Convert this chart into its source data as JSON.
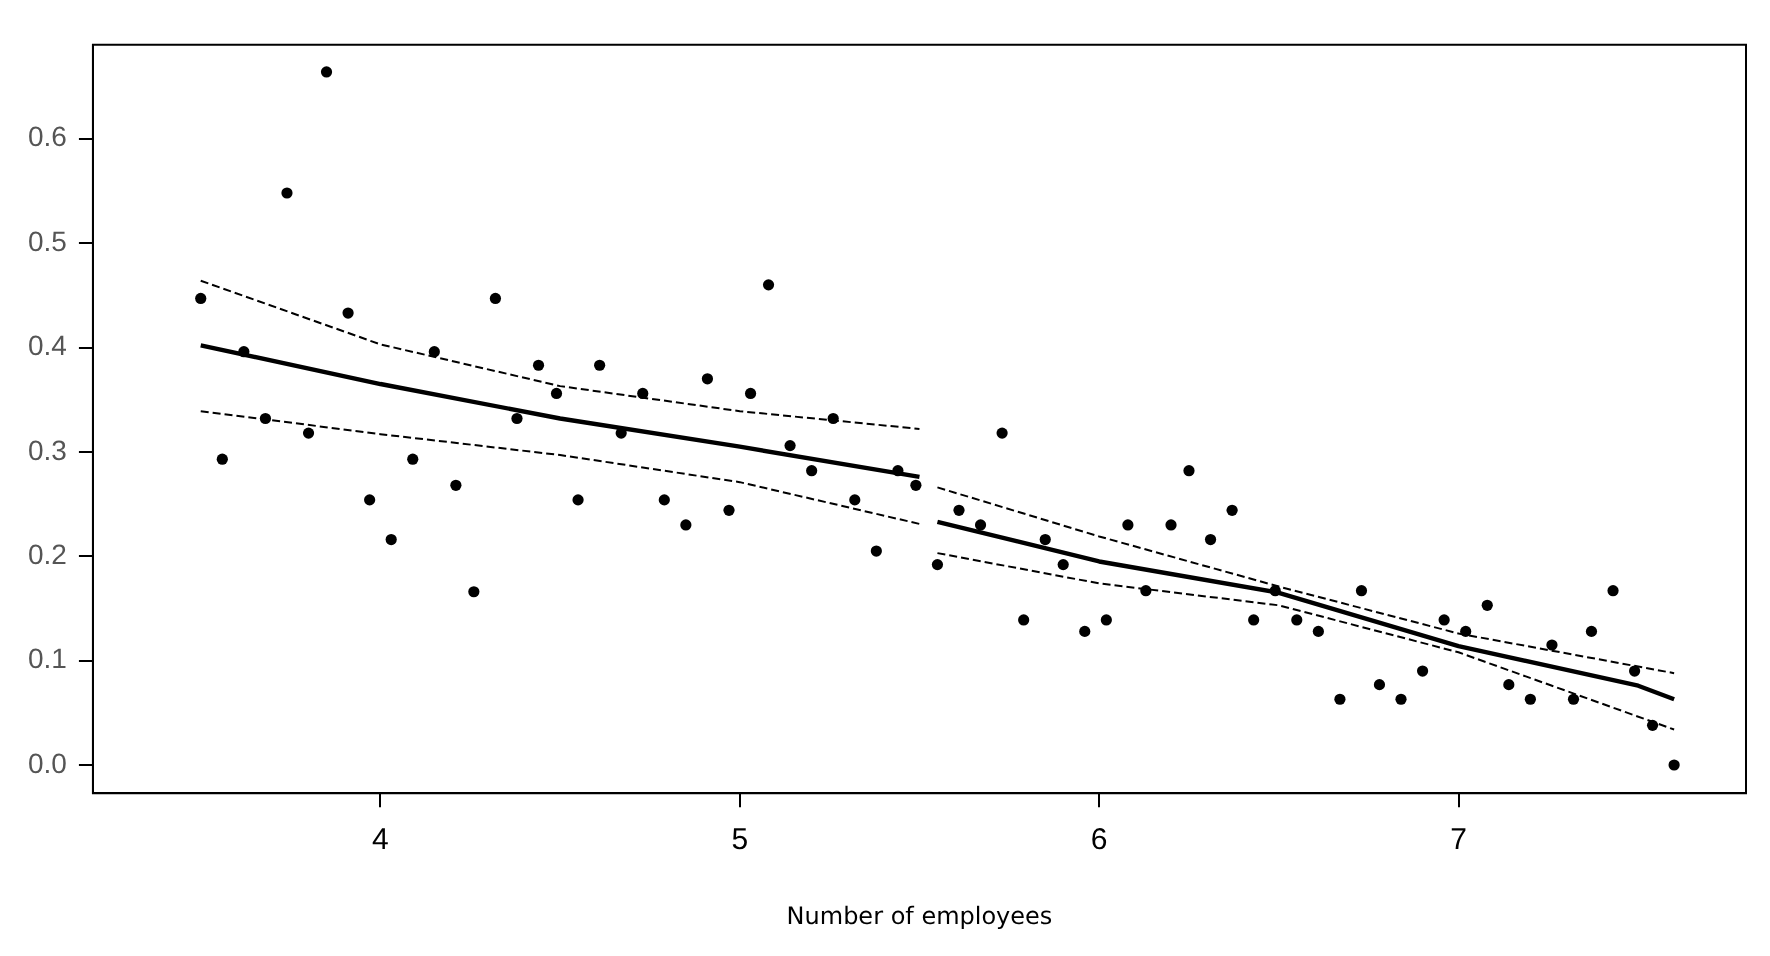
{
  "chart_data": {
    "type": "scatter",
    "xlabel": "Number of employees",
    "xlim": [
      3.2,
      7.8
    ],
    "xticks": [
      4,
      5,
      6,
      7
    ],
    "ylim": [
      -0.027,
      0.69
    ],
    "yticks": [
      {
        "value": 0,
        "label": "0.0"
      },
      0.1,
      0.2,
      0.3,
      0.4,
      0.5,
      0.6
    ],
    "grid": false,
    "legend": false,
    "series": [
      {
        "type": "scatter",
        "color": "#000000",
        "marker": "circle",
        "x": [
          3.5,
          3.56,
          3.62,
          3.68,
          3.74,
          3.8,
          3.85,
          3.91,
          3.97,
          4.03,
          4.09,
          4.15,
          4.21,
          4.26,
          4.32,
          4.38,
          4.44,
          4.49,
          4.55,
          4.61,
          4.67,
          4.73,
          4.79,
          4.85,
          4.91,
          4.97,
          5.03,
          5.08,
          5.14,
          5.2,
          5.26,
          5.32,
          5.38,
          5.44,
          5.49,
          5.55,
          5.61,
          5.67,
          5.73,
          5.79,
          5.85,
          5.9,
          5.96,
          6.02,
          6.08,
          6.13,
          6.2,
          6.25,
          6.31,
          6.37,
          6.43,
          6.49,
          6.55,
          6.61,
          6.67,
          6.73,
          6.78,
          6.84,
          6.9,
          6.96,
          7.02,
          7.08,
          7.14,
          7.2,
          7.26,
          7.32,
          7.37,
          7.43,
          7.49,
          7.54,
          7.6
        ],
        "values": [
          0.447,
          0.293,
          0.396,
          0.332,
          0.548,
          0.318,
          0.664,
          0.433,
          0.254,
          0.216,
          0.293,
          0.396,
          0.268,
          0.166,
          0.447,
          0.332,
          0.383,
          0.356,
          0.254,
          0.383,
          0.318,
          0.356,
          0.254,
          0.23,
          0.37,
          0.244,
          0.356,
          0.46,
          0.306,
          0.282,
          0.332,
          0.254,
          0.205,
          0.282,
          0.268,
          0.192,
          0.244,
          0.23,
          0.318,
          0.139,
          0.216,
          0.192,
          0.128,
          0.139,
          0.23,
          0.167,
          0.23,
          0.282,
          0.216,
          0.244,
          0.139,
          0.167,
          0.139,
          0.128,
          0.063,
          0.167,
          0.077,
          0.063,
          0.09,
          0.139,
          0.128,
          0.153,
          0.077,
          0.063,
          0.115,
          0.063,
          0.128,
          0.167,
          0.09,
          0.038,
          0.0
        ]
      },
      {
        "type": "line",
        "color": "#000000",
        "line_style": "solid",
        "marker": "none",
        "x": [
          3.5,
          4.0,
          4.5,
          5.0,
          5.5
        ],
        "values": [
          0.402,
          0.365,
          0.332,
          0.305,
          0.276
        ]
      },
      {
        "type": "line",
        "color": "#000000",
        "line_style": "dashed",
        "marker": "none",
        "x": [
          3.5,
          4.0,
          4.5,
          5.0,
          5.5
        ],
        "values": [
          0.464,
          0.403,
          0.363,
          0.339,
          0.322
        ]
      },
      {
        "type": "line",
        "color": "#000000",
        "line_style": "dashed",
        "marker": "none",
        "x": [
          3.5,
          4.0,
          4.5,
          5.0,
          5.5
        ],
        "values": [
          0.339,
          0.317,
          0.297,
          0.271,
          0.231
        ]
      },
      {
        "type": "line",
        "color": "#000000",
        "line_style": "solid",
        "marker": "none",
        "x": [
          5.55,
          6.0,
          6.5,
          7.0,
          7.5,
          7.6
        ],
        "values": [
          0.233,
          0.195,
          0.165,
          0.114,
          0.076,
          0.063
        ]
      },
      {
        "type": "line",
        "color": "#000000",
        "line_style": "dashed",
        "marker": "none",
        "x": [
          5.55,
          6.0,
          6.5,
          7.0,
          7.6
        ],
        "values": [
          0.266,
          0.219,
          0.171,
          0.126,
          0.088
        ]
      },
      {
        "type": "line",
        "color": "#000000",
        "line_style": "dashed",
        "marker": "none",
        "x": [
          5.55,
          6.0,
          6.5,
          7.0,
          7.6
        ],
        "values": [
          0.203,
          0.174,
          0.153,
          0.108,
          0.034
        ]
      }
    ]
  }
}
